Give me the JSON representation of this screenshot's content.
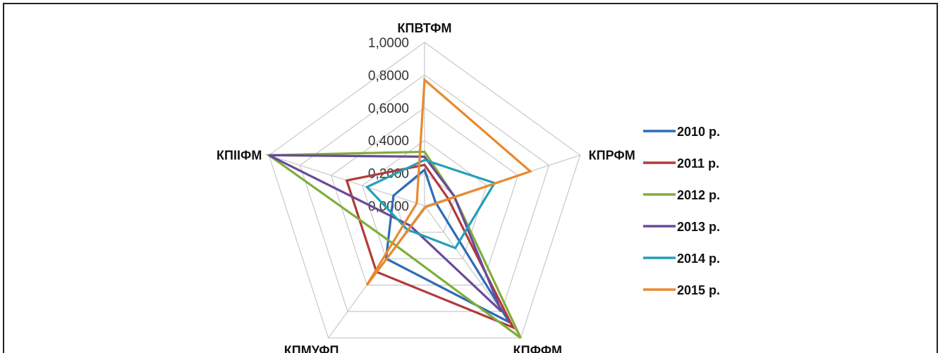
{
  "chart_data": {
    "type": "radar",
    "axes": [
      "КПВТФМ",
      "КПРФМ",
      "КПФФМ",
      "КПМУФП",
      "КПІІФМ"
    ],
    "ticks": [
      "0,0000",
      "0,2000",
      "0,4000",
      "0,6000",
      "0,8000",
      "1,0000"
    ],
    "range": [
      0,
      1
    ],
    "grid": true,
    "legend_position": "right",
    "series": [
      {
        "name": "2010 р.",
        "color": "#2E6BB6",
        "values": [
          0.22,
          0.07,
          0.88,
          0.4,
          0.2
        ]
      },
      {
        "name": "2011 р.",
        "color": "#B23A3A",
        "values": [
          0.25,
          0.15,
          0.92,
          0.5,
          0.5
        ]
      },
      {
        "name": "2012 р.",
        "color": "#7FAE3B",
        "values": [
          0.33,
          0.19,
          1.0,
          0.3,
          1.0
        ]
      },
      {
        "name": "2013 р.",
        "color": "#6A4A9A",
        "values": [
          0.3,
          0.19,
          0.8,
          0.15,
          1.0
        ]
      },
      {
        "name": "2014 р.",
        "color": "#22A0B8",
        "values": [
          0.28,
          0.45,
          0.32,
          0.18,
          0.37
        ]
      },
      {
        "name": "2015 р.",
        "color": "#E8892E",
        "values": [
          0.77,
          0.68,
          0.01,
          0.6,
          0.05
        ]
      }
    ]
  }
}
